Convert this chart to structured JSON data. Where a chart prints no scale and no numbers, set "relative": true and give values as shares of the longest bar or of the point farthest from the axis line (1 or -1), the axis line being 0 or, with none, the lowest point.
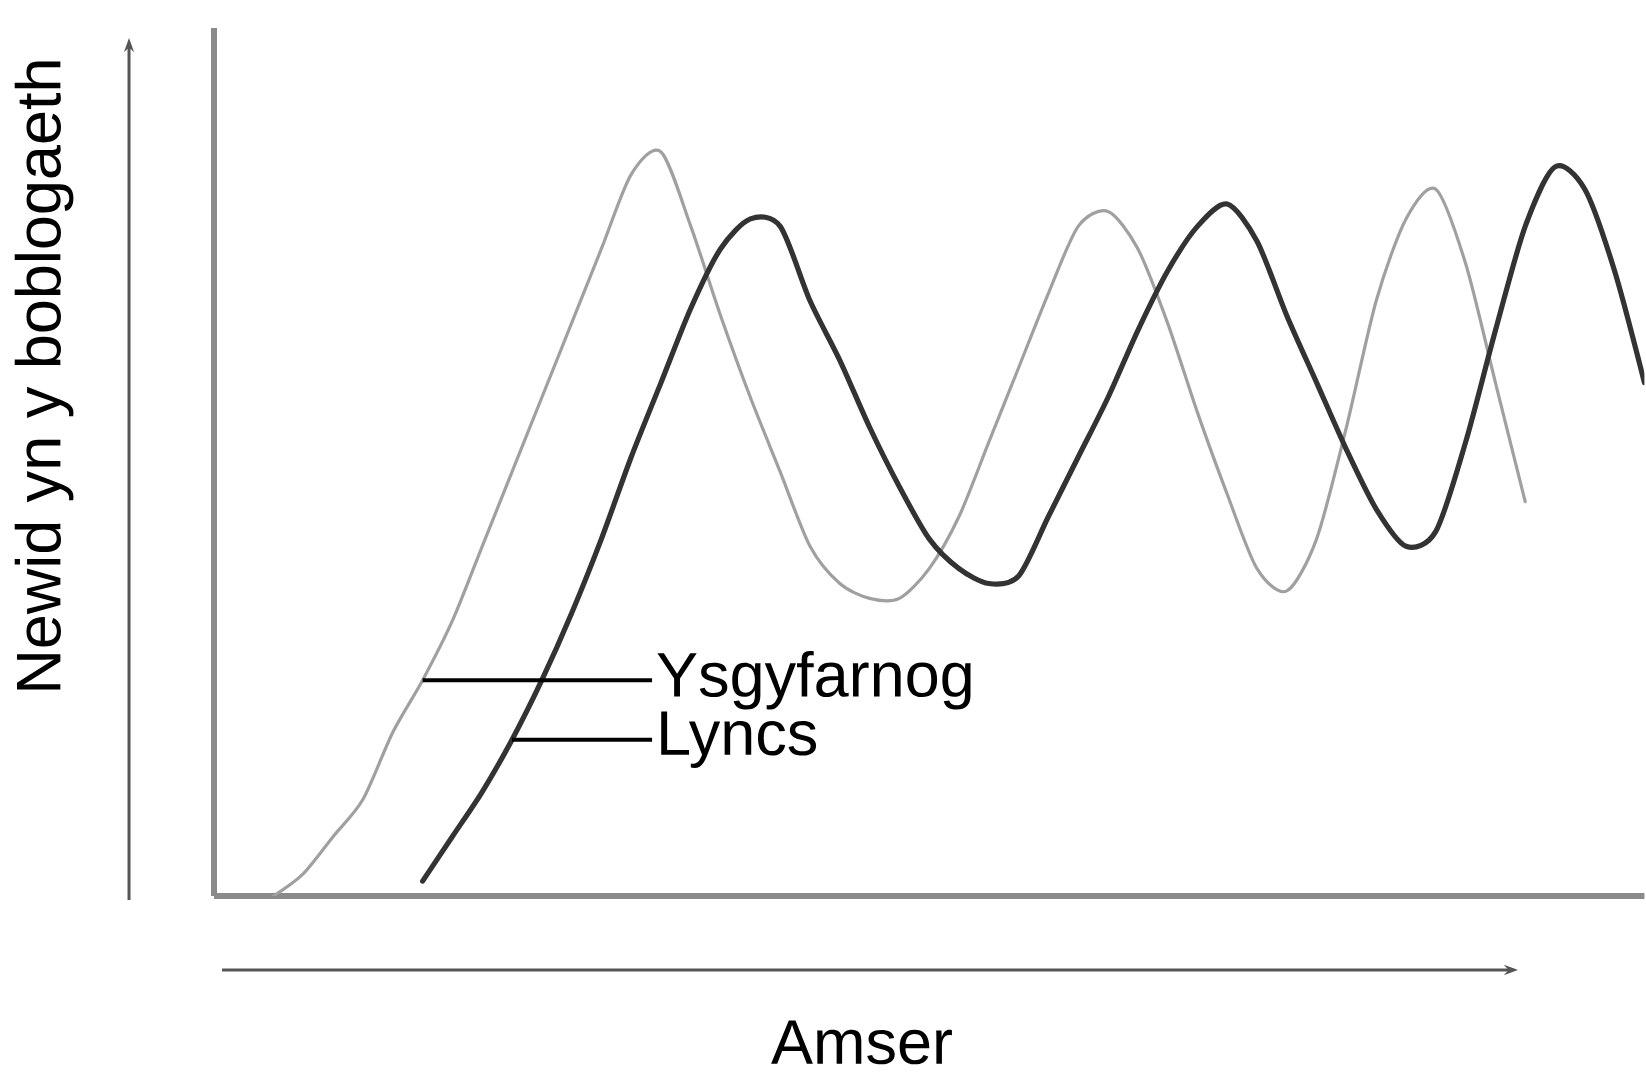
{
  "chart_data": {
    "type": "line",
    "xlabel": "Amser",
    "ylabel": "Newid yn y boblogaeth",
    "relative": true,
    "categories": [
      null,
      null,
      null,
      null,
      null,
      null,
      null,
      null,
      null,
      null,
      null,
      null,
      null,
      null,
      null,
      null,
      null,
      null,
      null,
      null,
      null,
      null,
      null,
      null,
      null,
      null,
      null,
      null,
      null,
      null,
      null,
      null,
      null,
      null,
      null,
      null,
      null,
      null,
      null,
      null,
      null,
      null,
      null,
      null,
      null,
      null,
      null,
      null,
      null
    ],
    "series": [
      {
        "name": "Ysgyfarnog",
        "color": "#a0a0a0",
        "values": [
          null,
          null,
          0,
          0.03,
          0.08,
          0.13,
          0.22,
          0.29,
          0.37,
          0.47,
          0.57,
          0.67,
          0.77,
          0.87,
          0.97,
          1,
          0.9,
          0.78,
          0.67,
          0.57,
          0.47,
          0.42,
          0.4,
          0.4,
          0.44,
          0.51,
          0.61,
          0.71,
          0.81,
          0.9,
          0.92,
          0.87,
          0.77,
          0.65,
          0.54,
          0.44,
          0.41,
          0.48,
          0.63,
          0.8,
          0.91,
          0.95,
          0.85,
          0.69,
          0.53,
          null,
          null,
          null,
          null
        ]
      },
      {
        "name": "Lyncs",
        "color": "#333333",
        "values": [
          null,
          null,
          null,
          null,
          null,
          null,
          null,
          0.02,
          0.08,
          0.14,
          0.21,
          0.29,
          0.38,
          0.48,
          0.59,
          0.69,
          0.79,
          0.87,
          0.91,
          0.9,
          0.8,
          0.72,
          0.63,
          0.55,
          0.48,
          0.44,
          0.42,
          0.43,
          0.51,
          0.59,
          0.67,
          0.76,
          0.84,
          0.9,
          0.93,
          0.88,
          0.78,
          0.69,
          0.6,
          0.52,
          0.47,
          0.49,
          0.61,
          0.76,
          0.9,
          0.98,
          0.95,
          0.84,
          0.69
        ]
      }
    ]
  }
}
